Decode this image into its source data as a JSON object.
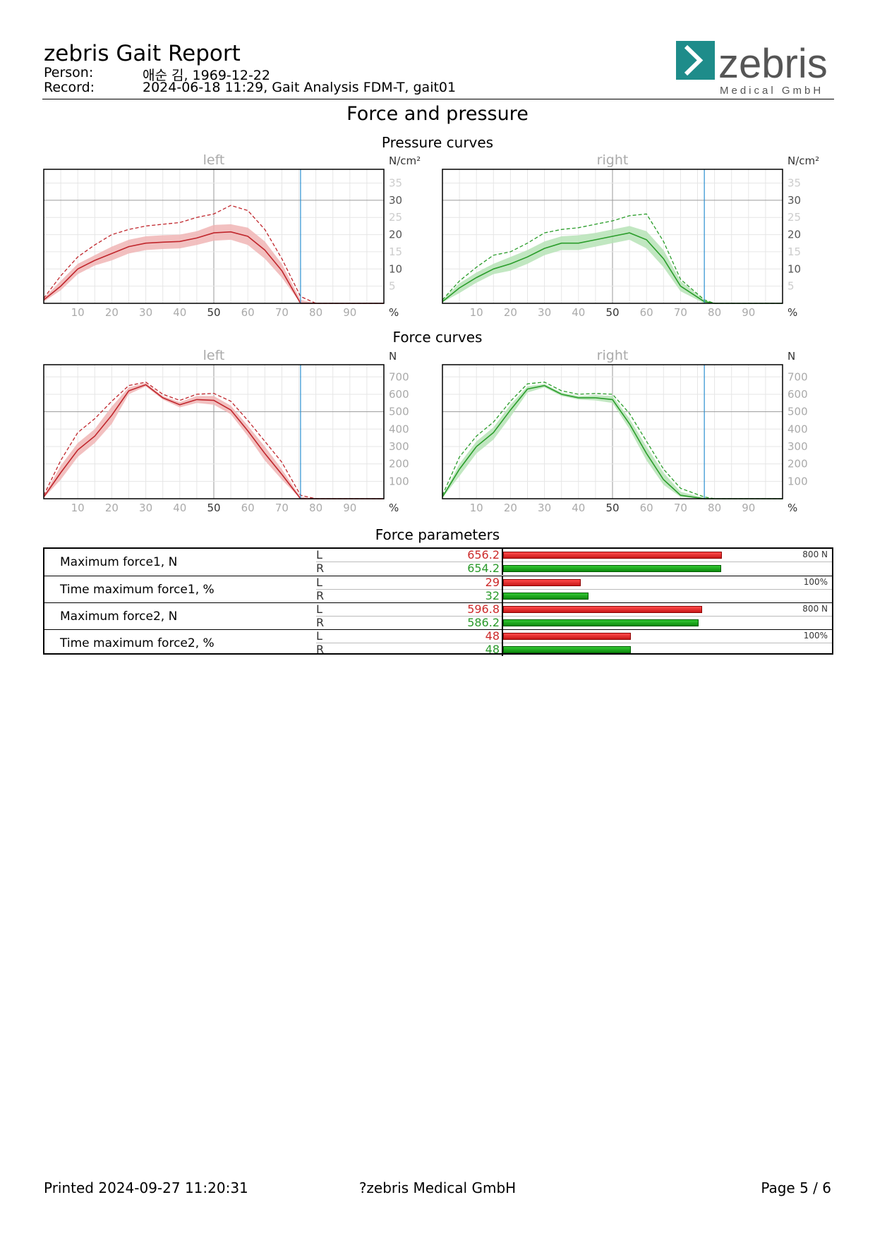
{
  "header": {
    "title": "zebris Gait Report",
    "person_label": "Person:",
    "person_value": "애순 김, 1969-12-22",
    "record_label": "Record:",
    "record_value": "2024-06-18 11:29, Gait Analysis FDM-T, gait01",
    "logo_text": "zebris",
    "logo_subtext": "Medical GmbH"
  },
  "section_title": "Force and pressure",
  "colors": {
    "left": "#c0262c",
    "left_band": "#f0b5b5",
    "right": "#2a9d2a",
    "right_band": "#b6e3b6",
    "toe_off_line": "#2a8fd0"
  },
  "chart_data": [
    {
      "type": "line",
      "group_title": "Pressure curves",
      "panel_title": "left",
      "unit_label": "N/cm²",
      "xlabel": "%",
      "xlim": [
        0,
        100
      ],
      "ylim": [
        0,
        39
      ],
      "x_ticks": [
        10,
        20,
        30,
        40,
        50,
        60,
        70,
        80,
        90
      ],
      "y_ticks": [
        5,
        10,
        15,
        20,
        25,
        30,
        35
      ],
      "toe_off": 75.5,
      "x": [
        0,
        5,
        10,
        15,
        20,
        25,
        30,
        35,
        40,
        45,
        50,
        55,
        60,
        65,
        70,
        75.5,
        80,
        85,
        90,
        95,
        100
      ],
      "series": [
        {
          "role": "mean",
          "values": [
            1,
            5,
            10,
            12.5,
            14.5,
            16.5,
            17.5,
            17.8,
            18,
            19,
            20.5,
            20.8,
            19.5,
            15.5,
            9.5,
            0,
            0,
            0,
            0,
            0,
            0
          ]
        },
        {
          "role": "band_upper",
          "values": [
            1.5,
            6.5,
            11.5,
            14,
            16.5,
            18.5,
            19.5,
            19.8,
            20,
            21,
            22.8,
            23,
            22,
            18,
            11.5,
            1,
            0,
            0,
            0,
            0,
            0
          ]
        },
        {
          "role": "band_lower",
          "values": [
            0.5,
            3.8,
            8.5,
            11,
            12.5,
            14.5,
            15.5,
            15.8,
            16,
            17,
            18.2,
            18.5,
            17,
            13,
            7.5,
            0,
            0,
            0,
            0,
            0,
            0
          ]
        },
        {
          "role": "max",
          "values": [
            1.5,
            8,
            13.5,
            17,
            20,
            21.5,
            22.5,
            23,
            23.5,
            25,
            26,
            28.5,
            27,
            21.5,
            13,
            2,
            0,
            0,
            0,
            0,
            0
          ]
        }
      ]
    },
    {
      "type": "line",
      "group_title": "Pressure curves",
      "panel_title": "right",
      "unit_label": "N/cm²",
      "xlabel": "%",
      "xlim": [
        0,
        100
      ],
      "ylim": [
        0,
        39
      ],
      "x_ticks": [
        10,
        20,
        30,
        40,
        50,
        60,
        70,
        80,
        90
      ],
      "y_ticks": [
        5,
        10,
        15,
        20,
        25,
        30,
        35
      ],
      "toe_off": 77,
      "x": [
        0,
        5,
        10,
        15,
        20,
        25,
        30,
        35,
        40,
        45,
        50,
        55,
        60,
        65,
        70,
        77,
        80,
        85,
        90,
        95,
        100
      ],
      "series": [
        {
          "role": "mean",
          "values": [
            0.5,
            4.5,
            7.5,
            10,
            11.5,
            13.5,
            16,
            17.5,
            17.5,
            18.5,
            19.5,
            20.5,
            18.5,
            13,
            5,
            0.5,
            0,
            0,
            0,
            0,
            0
          ]
        },
        {
          "role": "band_upper",
          "values": [
            1,
            5.8,
            9,
            11.5,
            13.5,
            15.5,
            18,
            19.5,
            19.8,
            20.5,
            21.5,
            22.5,
            21,
            15.5,
            6.5,
            1,
            0,
            0,
            0,
            0,
            0
          ]
        },
        {
          "role": "band_lower",
          "values": [
            0.3,
            3,
            6,
            8.5,
            9.5,
            11.5,
            14,
            15.5,
            15.5,
            16.5,
            17.5,
            18.5,
            16,
            10.5,
            3.5,
            0,
            0,
            0,
            0,
            0,
            0
          ]
        },
        {
          "role": "max",
          "values": [
            1,
            6.5,
            10.5,
            14,
            15,
            17.5,
            20.5,
            21.5,
            22,
            23,
            24,
            25.5,
            26,
            18,
            7,
            1,
            0,
            0,
            0,
            0,
            0
          ]
        }
      ]
    },
    {
      "type": "line",
      "group_title": "Force curves",
      "panel_title": "left",
      "unit_label": "N",
      "xlabel": "%",
      "xlim": [
        0,
        100
      ],
      "ylim": [
        0,
        770
      ],
      "x_ticks": [
        10,
        20,
        30,
        40,
        50,
        60,
        70,
        80,
        90
      ],
      "y_ticks": [
        100,
        200,
        300,
        400,
        500,
        600,
        700
      ],
      "toe_off": 75.5,
      "x": [
        0,
        5,
        10,
        15,
        20,
        25,
        30,
        35,
        40,
        45,
        50,
        55,
        60,
        65,
        70,
        75.5,
        80,
        85,
        90,
        95,
        100
      ],
      "series": [
        {
          "role": "mean",
          "values": [
            10,
            150,
            280,
            360,
            480,
            620,
            655,
            580,
            540,
            570,
            565,
            510,
            390,
            260,
            140,
            0,
            0,
            0,
            0,
            0,
            0
          ]
        },
        {
          "role": "band_upper",
          "values": [
            15,
            190,
            320,
            400,
            530,
            640,
            665,
            590,
            555,
            590,
            590,
            535,
            420,
            300,
            170,
            10,
            0,
            0,
            0,
            0,
            0
          ]
        },
        {
          "role": "band_lower",
          "values": [
            5,
            110,
            240,
            320,
            430,
            600,
            645,
            570,
            525,
            550,
            540,
            485,
            360,
            220,
            110,
            0,
            0,
            0,
            0,
            0,
            0
          ]
        },
        {
          "role": "max",
          "values": [
            20,
            220,
            380,
            460,
            560,
            650,
            670,
            600,
            565,
            600,
            605,
            560,
            450,
            330,
            210,
            20,
            0,
            0,
            0,
            0,
            0
          ]
        }
      ]
    },
    {
      "type": "line",
      "group_title": "Force curves",
      "panel_title": "right",
      "unit_label": "N",
      "xlabel": "%",
      "xlim": [
        0,
        100
      ],
      "ylim": [
        0,
        770
      ],
      "x_ticks": [
        10,
        20,
        30,
        40,
        50,
        60,
        70,
        80,
        90
      ],
      "y_ticks": [
        100,
        200,
        300,
        400,
        500,
        600,
        700
      ],
      "toe_off": 77,
      "x": [
        0,
        5,
        10,
        15,
        20,
        25,
        30,
        35,
        40,
        45,
        50,
        55,
        60,
        65,
        70,
        77,
        80,
        85,
        90,
        95,
        100
      ],
      "series": [
        {
          "role": "mean",
          "values": [
            10,
            170,
            300,
            380,
            510,
            630,
            650,
            600,
            580,
            580,
            570,
            430,
            260,
            110,
            20,
            0,
            0,
            0,
            0,
            0,
            0
          ]
        },
        {
          "role": "band_upper",
          "values": [
            15,
            200,
            330,
            410,
            540,
            645,
            660,
            610,
            590,
            595,
            590,
            460,
            300,
            150,
            40,
            5,
            0,
            0,
            0,
            0,
            0
          ]
        },
        {
          "role": "band_lower",
          "values": [
            5,
            130,
            260,
            340,
            470,
            610,
            640,
            590,
            570,
            565,
            550,
            400,
            220,
            80,
            10,
            0,
            0,
            0,
            0,
            0,
            0
          ]
        },
        {
          "role": "max",
          "values": [
            20,
            240,
            360,
            440,
            560,
            660,
            670,
            620,
            600,
            605,
            600,
            490,
            330,
            170,
            60,
            10,
            0,
            0,
            0,
            0,
            0
          ]
        }
      ]
    }
  ],
  "force_parameters": {
    "title": "Force parameters",
    "rows": [
      {
        "label": "Maximum force1, N",
        "l_label": "L",
        "r_label": "R",
        "l_value": "656.2",
        "r_value": "654.2",
        "l": 656.2,
        "r": 654.2,
        "max": 800,
        "max_label": "800 N"
      },
      {
        "label": "Time maximum force1, %",
        "l_label": "L",
        "r_label": "R",
        "l_value": "29",
        "r_value": "32",
        "l": 29,
        "r": 32,
        "max": 100,
        "max_label": "100%"
      },
      {
        "label": "Maximum force2, N",
        "l_label": "L",
        "r_label": "R",
        "l_value": "596.8",
        "r_value": "586.2",
        "l": 596.8,
        "r": 586.2,
        "max": 800,
        "max_label": "800 N"
      },
      {
        "label": "Time maximum force2, %",
        "l_label": "L",
        "r_label": "R",
        "l_value": "48",
        "r_value": "48",
        "l": 48,
        "r": 48,
        "max": 100,
        "max_label": "100%"
      }
    ]
  },
  "footer": {
    "printed": "Printed  2024-09-27 11:20:31",
    "company": "?zebris Medical GmbH",
    "page": "Page  5 / 6"
  }
}
